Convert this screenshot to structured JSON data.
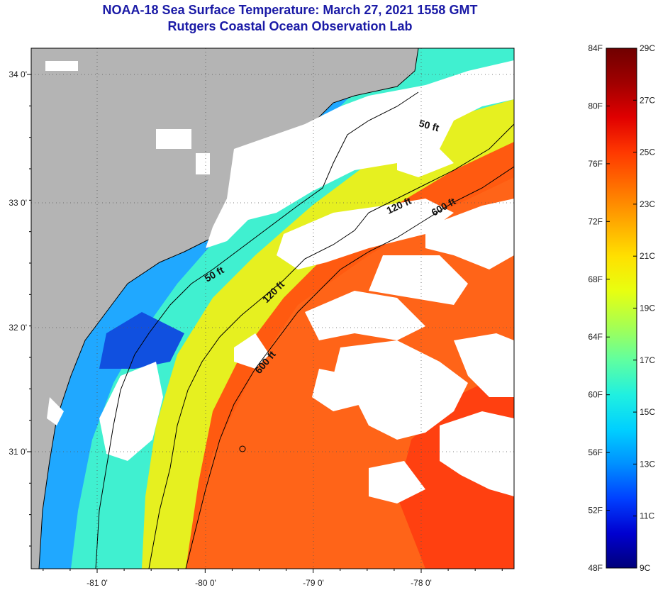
{
  "title": "NOAA-18 Sea Surface Temperature:  March 27, 2021 1558 GMT",
  "subtitle": "Rutgers Coastal Ocean Observation Lab",
  "latitude_labels": [
    {
      "lat": 34,
      "text": "34 0'"
    },
    {
      "lat": 33,
      "text": "33 0'"
    },
    {
      "lat": 32,
      "text": "32 0'"
    },
    {
      "lat": 31,
      "text": "31 0'"
    }
  ],
  "longitude_labels": [
    {
      "lon": -81,
      "text": "-81 0'"
    },
    {
      "lon": -80,
      "text": "-80 0'"
    },
    {
      "lon": -79,
      "text": "-79 0'"
    },
    {
      "lon": -78,
      "text": "-78 0'"
    }
  ],
  "depth_contours": [
    {
      "depth": "50 ft",
      "labels": [
        "50 ft",
        "50 ft"
      ]
    },
    {
      "depth": "120 ft",
      "labels": [
        "120 ft",
        "120 ft"
      ]
    },
    {
      "depth": "600 ft",
      "labels": [
        "600 ft",
        "600 ft"
      ]
    }
  ],
  "colorbar": {
    "fahrenheit_labels": [
      "84F",
      "80F",
      "76F",
      "72F",
      "68F",
      "64F",
      "60F",
      "56F",
      "52F",
      "48F"
    ],
    "celsius_labels": [
      "29C",
      "27C",
      "25C",
      "23C",
      "21C",
      "19C",
      "17C",
      "15C",
      "13C",
      "11C",
      "9C"
    ],
    "colors": [
      "#00007a",
      "#0000d0",
      "#0040ff",
      "#0090ff",
      "#00d0ff",
      "#20f0e0",
      "#60ffa0",
      "#a8ff50",
      "#e8ff10",
      "#ffe000",
      "#ffa800",
      "#ff7000",
      "#ff3800",
      "#e00000",
      "#a00000",
      "#700000"
    ]
  },
  "map_colors": {
    "land": "#b4b4b4",
    "cloud": "#ffffff",
    "outline": "#000000"
  }
}
